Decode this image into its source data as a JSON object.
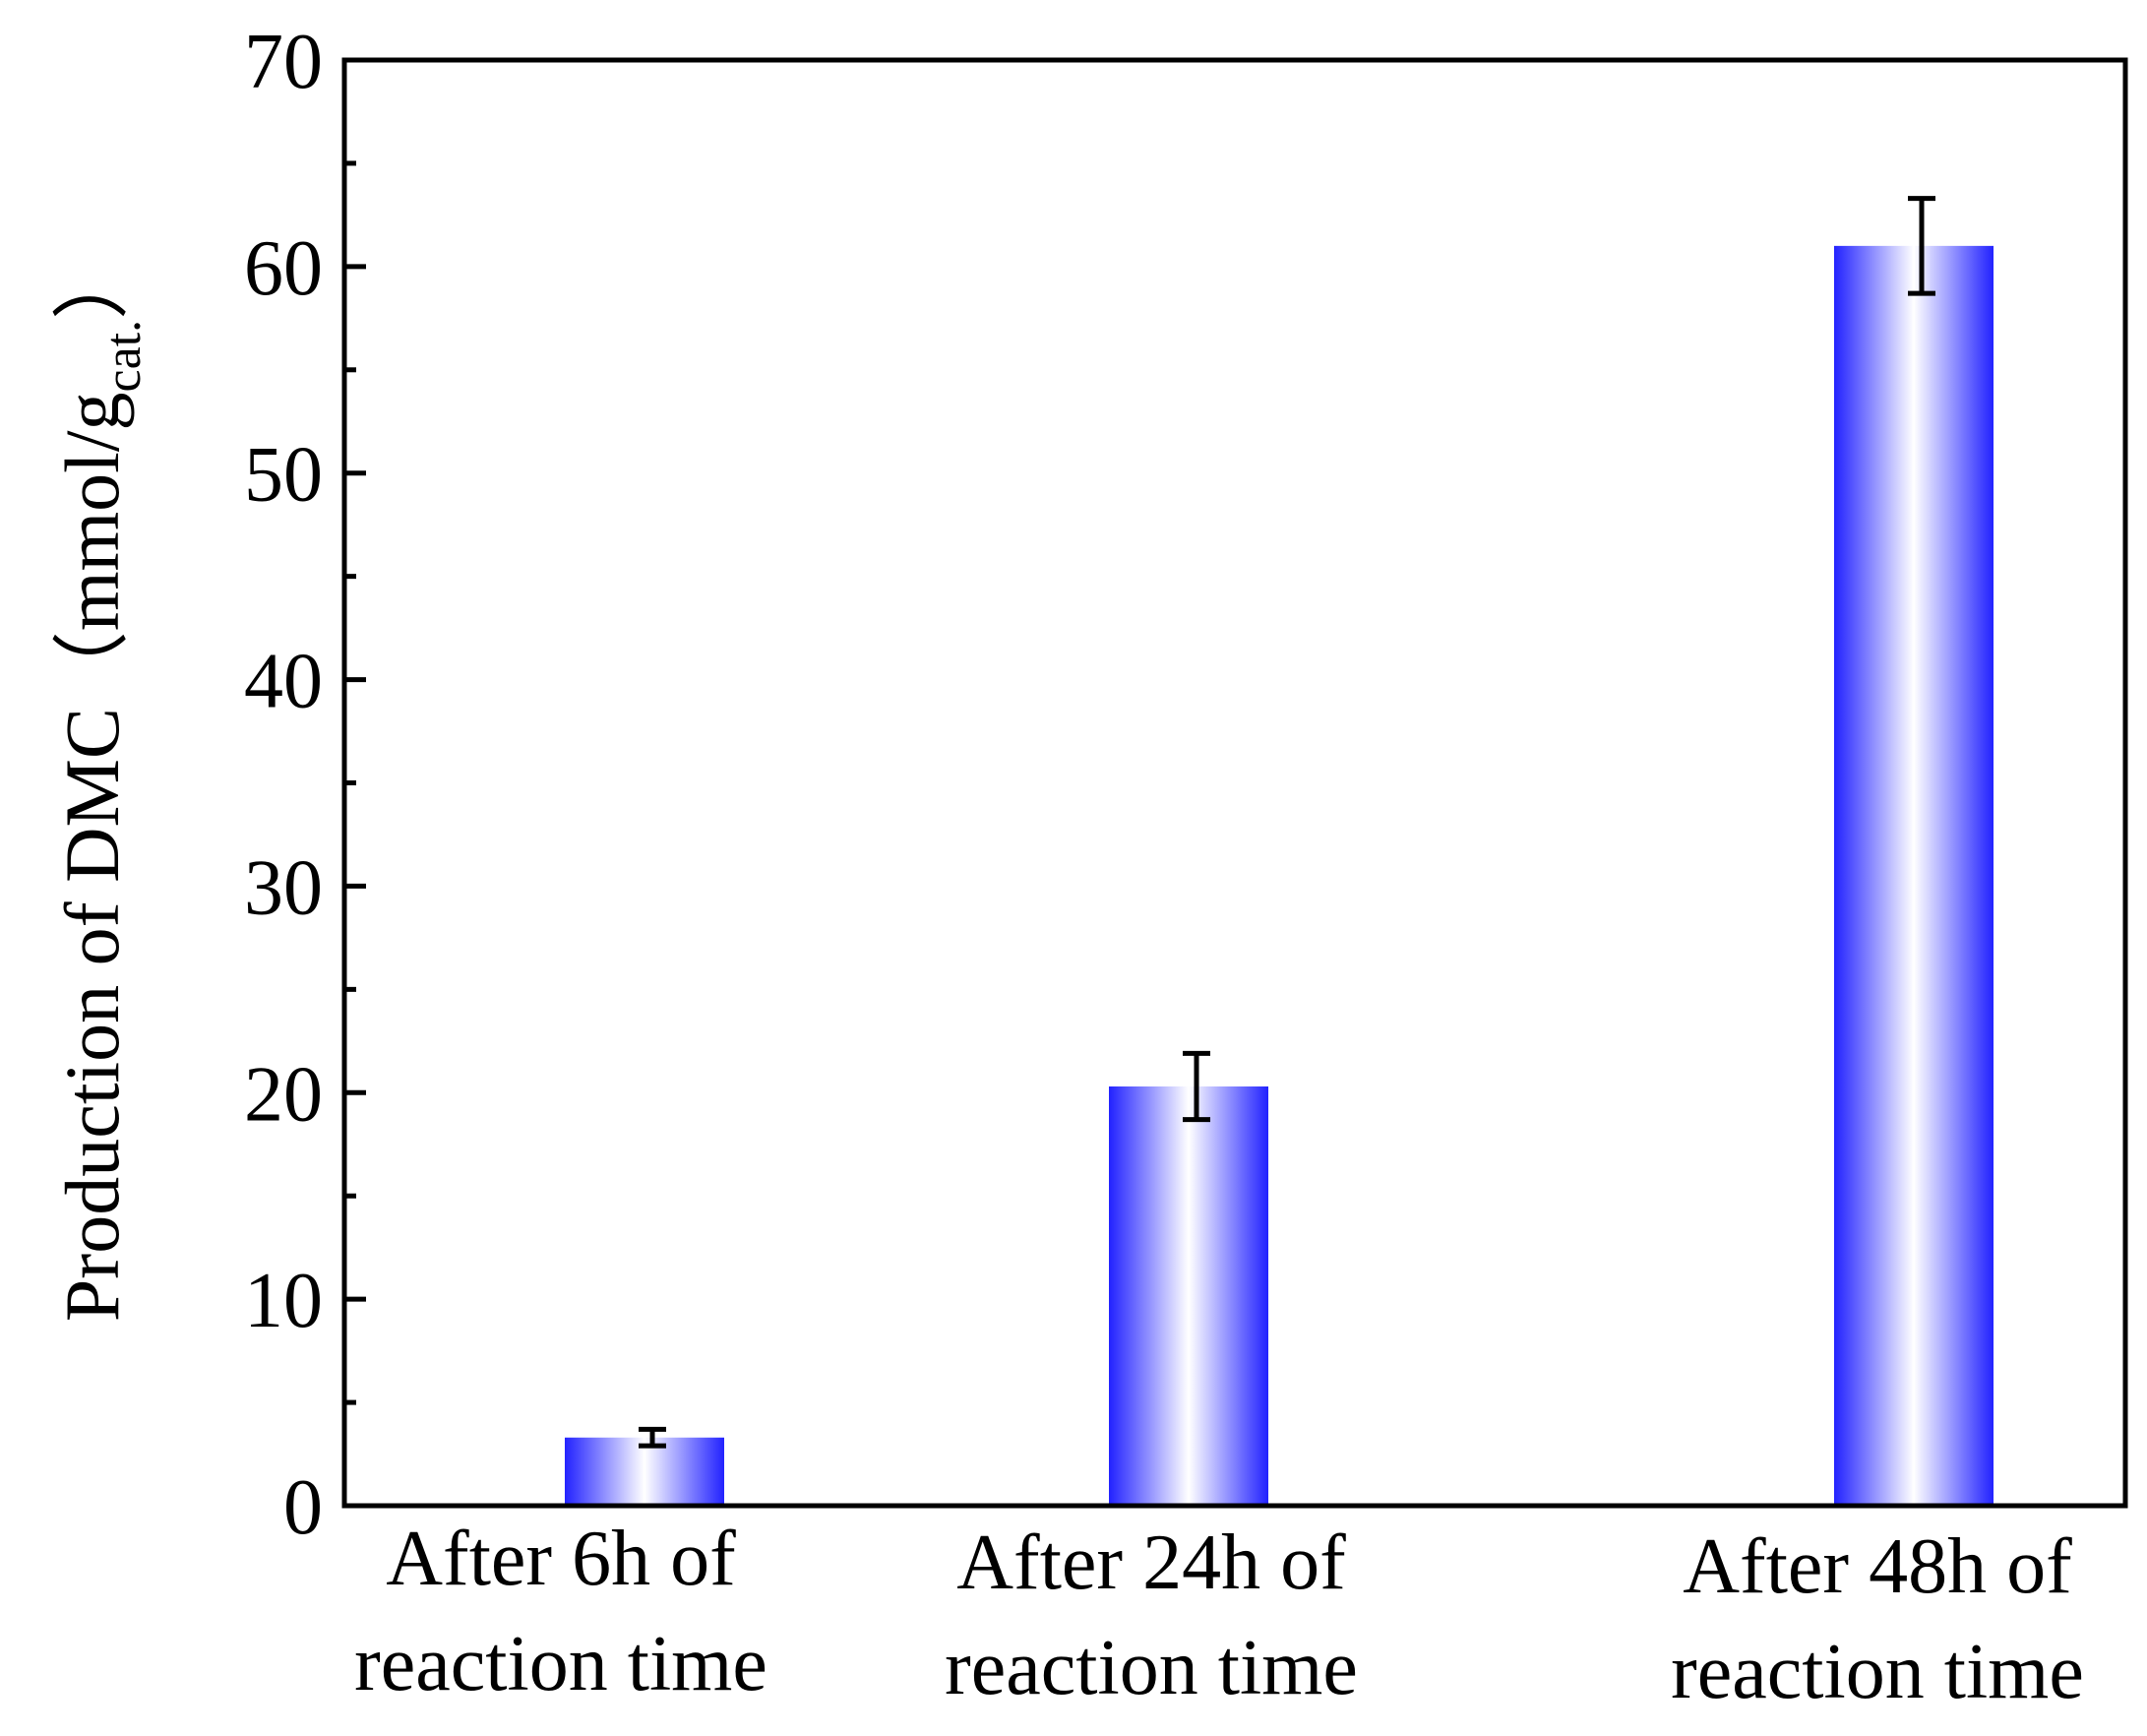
{
  "chart_data": {
    "type": "bar",
    "title": "",
    "xlabel": "",
    "ylabel": {
      "main": "Production of DMC（mmol/g",
      "subscript": "cat.",
      "close": "）"
    },
    "categories": [
      [
        "After 6h of",
        "reaction time"
      ],
      [
        "After 24h of",
        "reaction time"
      ],
      [
        "After 48h of",
        "reaction time"
      ]
    ],
    "values": [
      3.3,
      20.3,
      61.0
    ],
    "errors": [
      0.4,
      1.6,
      2.3
    ],
    "ylim": [
      0,
      70
    ],
    "yticks": [
      0,
      10,
      20,
      30,
      40,
      50,
      60,
      70
    ],
    "yticks_minor_step": 5,
    "grid": false,
    "legend": "none",
    "bar_color": "#2222ff",
    "bar_highlight": "#ffffff",
    "errorbar_color": "#000000",
    "axis_color": "#000000"
  }
}
